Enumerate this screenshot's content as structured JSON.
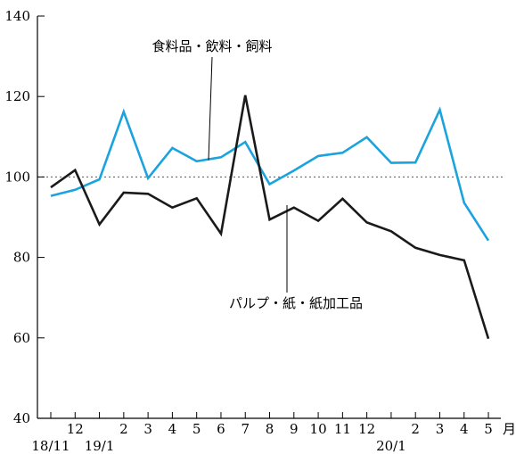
{
  "chart_data": {
    "type": "line",
    "x": [
      "2018-11",
      "2018-12",
      "2019-01",
      "2019-02",
      "2019-03",
      "2019-04",
      "2019-05",
      "2019-06",
      "2019-07",
      "2019-08",
      "2019-09",
      "2019-10",
      "2019-11",
      "2019-12",
      "2020-01",
      "2020-02",
      "2020-03",
      "2020-04",
      "2020-05"
    ],
    "x_tick_labels": [
      {
        "label": "",
        "year_label": "18/11"
      },
      {
        "label": "12",
        "year_label": ""
      },
      {
        "label": "",
        "year_label": "19/1"
      },
      {
        "label": "2",
        "year_label": ""
      },
      {
        "label": "3",
        "year_label": ""
      },
      {
        "label": "4",
        "year_label": ""
      },
      {
        "label": "5",
        "year_label": ""
      },
      {
        "label": "6",
        "year_label": ""
      },
      {
        "label": "7",
        "year_label": ""
      },
      {
        "label": "8",
        "year_label": ""
      },
      {
        "label": "9",
        "year_label": ""
      },
      {
        "label": "10",
        "year_label": ""
      },
      {
        "label": "11",
        "year_label": ""
      },
      {
        "label": "12",
        "year_label": ""
      },
      {
        "label": "",
        "year_label": "20/1"
      },
      {
        "label": "2",
        "year_label": ""
      },
      {
        "label": "3",
        "year_label": ""
      },
      {
        "label": "4",
        "year_label": ""
      },
      {
        "label": "5",
        "year_label": ""
      }
    ],
    "x_unit_label": "月",
    "ylim": [
      40,
      140
    ],
    "y_ticks": [
      40,
      60,
      80,
      100,
      120,
      140
    ],
    "reference_line": 100,
    "series": [
      {
        "name": "食料品・飲料・飼料",
        "color": "#1aa3dd",
        "values": [
          95.3,
          96.8,
          99.4,
          116.2,
          99.7,
          107.2,
          103.9,
          104.9,
          108.7,
          98.2,
          101.6,
          105.2,
          106.0,
          109.9,
          103.5,
          103.6,
          116.7,
          93.6,
          84.2
        ]
      },
      {
        "name": "パルプ・紙・紙加工品",
        "color": "#1a1a1a",
        "values": [
          97.4,
          101.7,
          88.2,
          96.1,
          95.8,
          92.4,
          94.7,
          85.9,
          120.3,
          89.4,
          92.4,
          89.1,
          94.6,
          88.7,
          86.5,
          82.4,
          80.6,
          79.3,
          59.8
        ]
      }
    ],
    "annotations": [
      {
        "series_index": 0,
        "text": "食料品・飲料・飼料"
      },
      {
        "series_index": 1,
        "text": "パルプ・紙・紙加工品"
      }
    ]
  }
}
